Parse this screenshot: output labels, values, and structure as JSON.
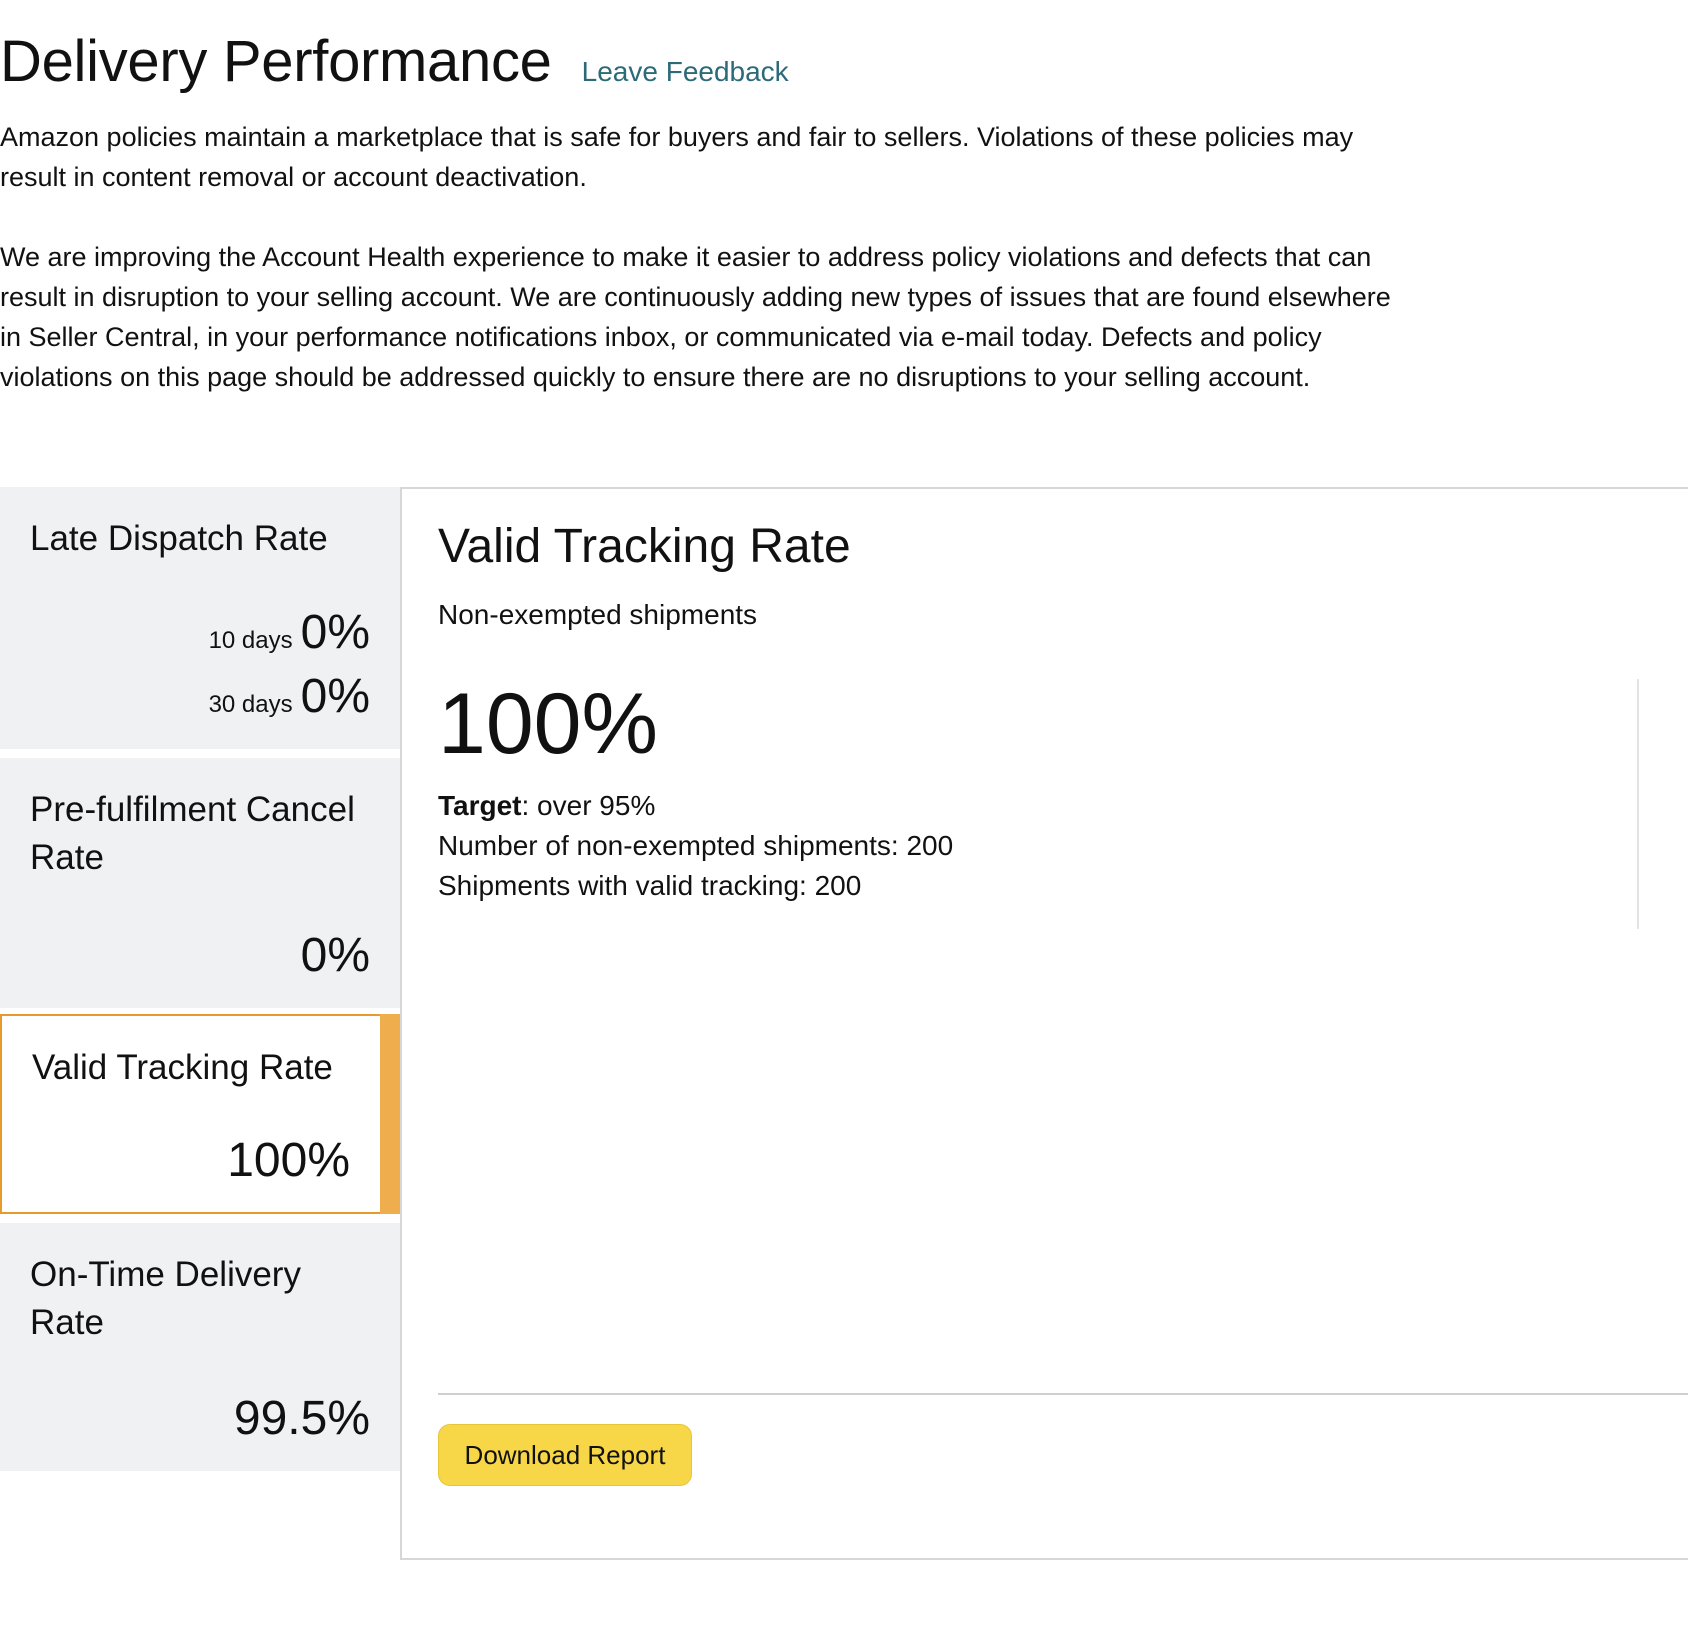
{
  "header": {
    "title": "Delivery Performance",
    "feedback_link": "Leave Feedback"
  },
  "intro": {
    "paragraph1": "Amazon policies maintain a marketplace that is safe for buyers and fair to sellers. Violations of these policies may result in content removal or account deactivation.",
    "paragraph2": "We are improving the Account Health experience to make it easier to address policy violations and defects that can result in disruption to your selling account. We are continuously adding new types of issues that are found elsewhere in Seller Central, in your performance notifications inbox, or communicated via e-mail today. Defects and policy violations on this page should be addressed quickly to ensure there are no disruptions to your selling account."
  },
  "sidebar": {
    "late_dispatch": {
      "label": "Late Dispatch Rate",
      "rows": [
        {
          "period": "10 days",
          "value": "0%"
        },
        {
          "period": "30 days",
          "value": "0%"
        }
      ]
    },
    "pre_fulfilment_cancel": {
      "label": "Pre-fulfilment Cancel Rate",
      "value": "0%"
    },
    "valid_tracking": {
      "label": "Valid Tracking Rate",
      "value": "100%",
      "selected": true
    },
    "on_time_delivery": {
      "label": "On-Time Delivery Rate",
      "value": "99.5%"
    }
  },
  "detail": {
    "title": "Valid Tracking Rate",
    "subtitle": "Non-exempted shipments",
    "big_value": "100%",
    "target_label": "Target",
    "target_value": ": over 95%",
    "line_shipments": "Number of non-exempted shipments: 200",
    "line_tracking": "Shipments with valid tracking: 200",
    "download_button": "Download Report"
  },
  "colors": {
    "link": "#2c6a78",
    "selected_accent": "#f0ad4e",
    "button": "#f7d748",
    "card_bg": "#f0f1f3"
  }
}
